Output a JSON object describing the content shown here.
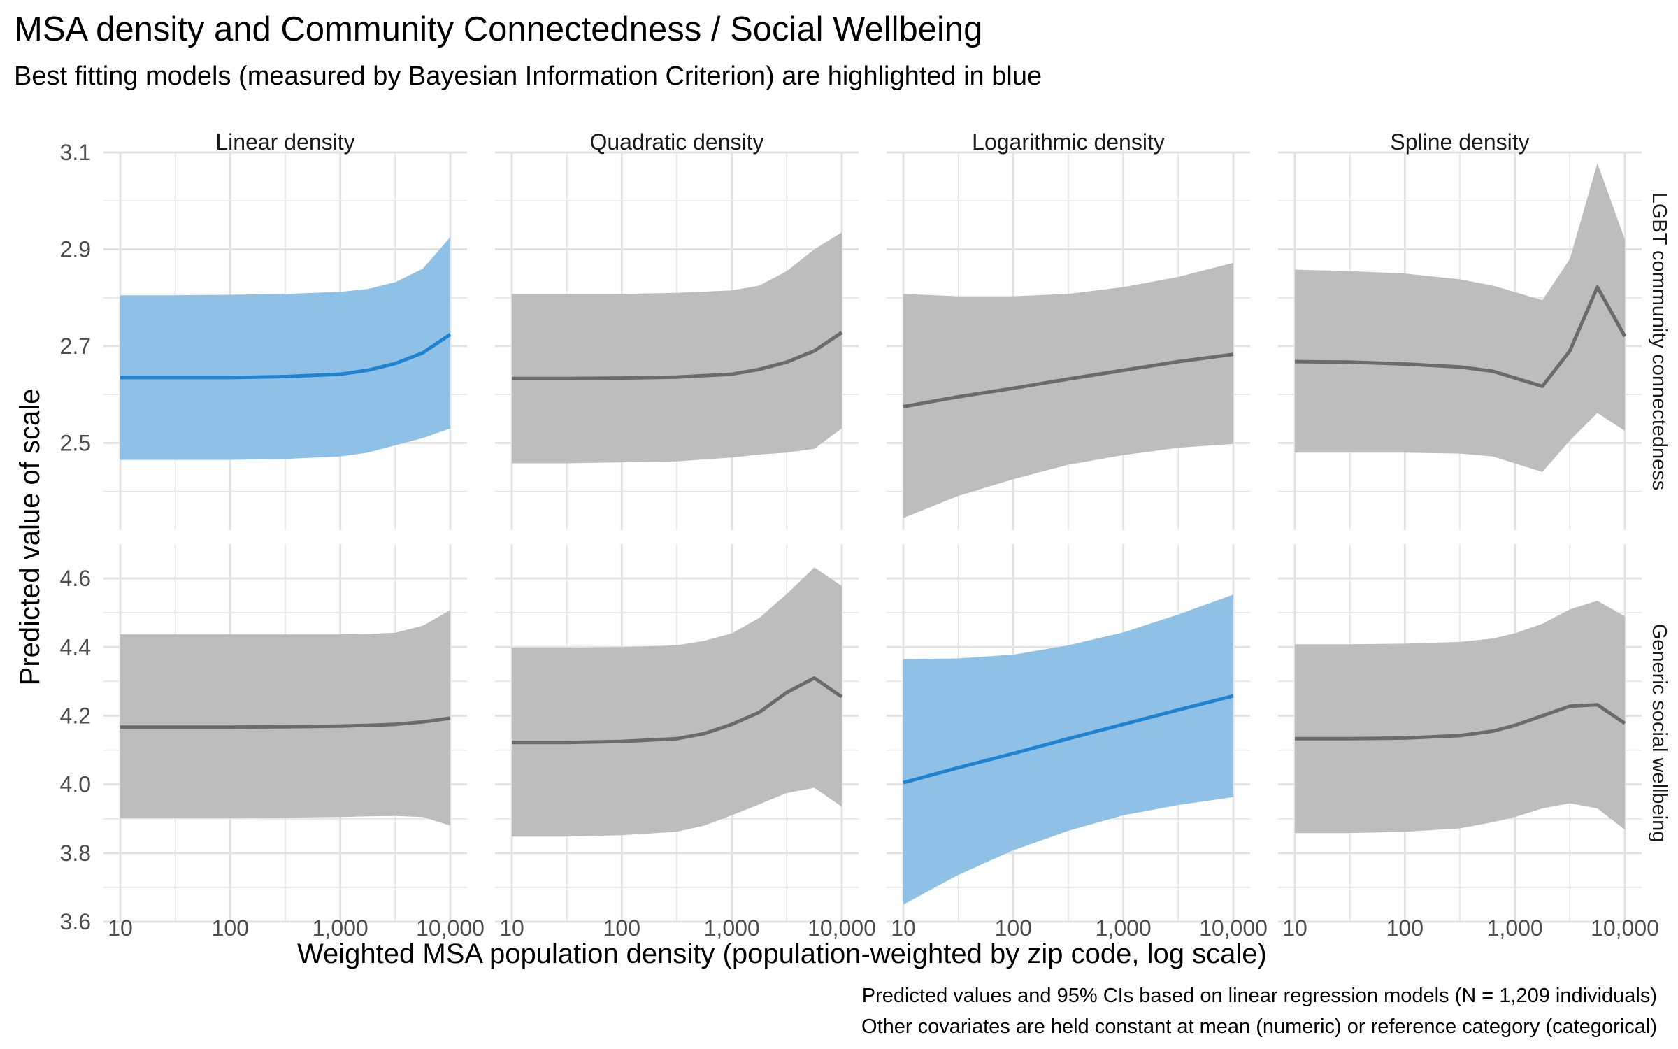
{
  "title": "MSA density and Community Connectedness / Social Wellbeing",
  "subtitle": "Best fitting models (measured by Bayesian Information Criterion) are highlighted in blue",
  "caption_line1": "Predicted values and 95% CIs based on linear regression models (N = 1,209 individuals)",
  "caption_line2": "Other covariates are held constant at mean (numeric) or reference category (categorical)",
  "colors": {
    "best_fill": "#8fc1e6",
    "best_line": "#1f83d2",
    "other_fill": "#bdbdbd",
    "other_line": "#6b6b6b",
    "grid": "#e3e3e3",
    "panel_label": "#1a1a1a",
    "tick_label": "#4d4d4d"
  },
  "chart_data": {
    "type": "area",
    "xlabel": "Weighted MSA population density (population-weighted by zip code, log scale)",
    "ylabel": "Predicted value of scale",
    "x_scale": "log10",
    "xlim": [
      10,
      10000
    ],
    "x_ticks": [
      10,
      100,
      1000,
      10000
    ],
    "x_tick_labels": [
      "10",
      "100",
      "1,000",
      "10,000"
    ],
    "grid": true,
    "columns": [
      "Linear density",
      "Quadratic density",
      "Logarithmic density",
      "Spline density"
    ],
    "rows": [
      {
        "label": "LGBT community connectedness",
        "ylim": [
          2.32,
          3.1
        ],
        "y_ticks": [
          2.5,
          2.7,
          2.9,
          3.1
        ],
        "y_tick_labels": [
          "2.5",
          "2.7",
          "2.9",
          "3.1"
        ]
      },
      {
        "label": "Generic social wellbeing",
        "ylim": [
          3.6,
          4.7
        ],
        "y_ticks": [
          3.6,
          3.8,
          4.0,
          4.2,
          4.4,
          4.6
        ],
        "y_tick_labels": [
          "3.6",
          "3.8",
          "4.0",
          "4.2",
          "4.4",
          "4.6"
        ]
      }
    ],
    "panels": [
      {
        "row": 0,
        "col": 0,
        "best": true,
        "x": [
          10,
          31,
          100,
          316,
          1000,
          1778,
          3162,
          5623,
          10000
        ],
        "y": [
          2.635,
          2.635,
          2.635,
          2.637,
          2.642,
          2.65,
          2.664,
          2.686,
          2.724
        ],
        "lower": [
          2.465,
          2.465,
          2.465,
          2.467,
          2.472,
          2.48,
          2.495,
          2.51,
          2.53
        ],
        "upper": [
          2.805,
          2.805,
          2.806,
          2.808,
          2.812,
          2.818,
          2.832,
          2.86,
          2.925
        ]
      },
      {
        "row": 0,
        "col": 1,
        "best": false,
        "x": [
          10,
          31,
          100,
          316,
          1000,
          1778,
          3162,
          5623,
          10000
        ],
        "y": [
          2.633,
          2.633,
          2.634,
          2.636,
          2.642,
          2.652,
          2.667,
          2.69,
          2.728
        ],
        "lower": [
          2.458,
          2.458,
          2.46,
          2.462,
          2.47,
          2.476,
          2.48,
          2.488,
          2.53
        ],
        "upper": [
          2.808,
          2.808,
          2.808,
          2.81,
          2.815,
          2.825,
          2.855,
          2.9,
          2.935
        ]
      },
      {
        "row": 0,
        "col": 2,
        "best": false,
        "x": [
          10,
          31,
          100,
          316,
          1000,
          3162,
          10000
        ],
        "y": [
          2.575,
          2.595,
          2.613,
          2.632,
          2.65,
          2.668,
          2.683
        ],
        "lower": [
          2.345,
          2.39,
          2.425,
          2.455,
          2.475,
          2.49,
          2.498
        ],
        "upper": [
          2.808,
          2.803,
          2.803,
          2.808,
          2.822,
          2.843,
          2.872
        ]
      },
      {
        "row": 0,
        "col": 3,
        "best": false,
        "x": [
          10,
          31,
          100,
          316,
          631,
          1778,
          3162,
          5623,
          10000
        ],
        "y": [
          2.668,
          2.667,
          2.663,
          2.657,
          2.648,
          2.617,
          2.69,
          2.822,
          2.72
        ],
        "lower": [
          2.48,
          2.48,
          2.48,
          2.478,
          2.472,
          2.44,
          2.505,
          2.562,
          2.525
        ],
        "upper": [
          2.858,
          2.855,
          2.85,
          2.838,
          2.825,
          2.795,
          2.88,
          3.078,
          2.92
        ]
      },
      {
        "row": 1,
        "col": 0,
        "best": false,
        "x": [
          10,
          31,
          100,
          316,
          1000,
          1778,
          3162,
          5623,
          10000
        ],
        "y": [
          4.167,
          4.167,
          4.167,
          4.168,
          4.17,
          4.172,
          4.175,
          4.182,
          4.193
        ],
        "lower": [
          3.902,
          3.902,
          3.902,
          3.903,
          3.905,
          3.907,
          3.908,
          3.905,
          3.88
        ],
        "upper": [
          4.437,
          4.437,
          4.437,
          4.437,
          4.437,
          4.438,
          4.442,
          4.462,
          4.508
        ]
      },
      {
        "row": 1,
        "col": 1,
        "best": false,
        "x": [
          10,
          31,
          100,
          316,
          562,
          1000,
          1778,
          3162,
          5623,
          10000
        ],
        "y": [
          4.122,
          4.122,
          4.125,
          4.133,
          4.148,
          4.175,
          4.21,
          4.268,
          4.31,
          4.255
        ],
        "lower": [
          3.848,
          3.848,
          3.852,
          3.862,
          3.88,
          3.91,
          3.942,
          3.975,
          3.99,
          3.935
        ],
        "upper": [
          4.398,
          4.398,
          4.4,
          4.405,
          4.418,
          4.44,
          4.485,
          4.555,
          4.632,
          4.578
        ]
      },
      {
        "row": 1,
        "col": 2,
        "best": true,
        "x": [
          10,
          31,
          100,
          316,
          1000,
          3162,
          10000
        ],
        "y": [
          4.005,
          4.048,
          4.09,
          4.133,
          4.175,
          4.217,
          4.258
        ],
        "lower": [
          3.65,
          3.735,
          3.808,
          3.865,
          3.91,
          3.94,
          3.963
        ],
        "upper": [
          4.365,
          4.367,
          4.378,
          4.405,
          4.443,
          4.495,
          4.553
        ]
      },
      {
        "row": 1,
        "col": 3,
        "best": false,
        "x": [
          10,
          31,
          100,
          316,
          631,
          1000,
          1778,
          3162,
          5623,
          10000
        ],
        "y": [
          4.133,
          4.133,
          4.135,
          4.142,
          4.155,
          4.172,
          4.2,
          4.228,
          4.232,
          4.178
        ],
        "lower": [
          3.858,
          3.858,
          3.862,
          3.872,
          3.89,
          3.905,
          3.93,
          3.945,
          3.93,
          3.868
        ],
        "upper": [
          4.408,
          4.408,
          4.41,
          4.415,
          4.425,
          4.44,
          4.468,
          4.51,
          4.535,
          4.49
        ]
      }
    ]
  }
}
